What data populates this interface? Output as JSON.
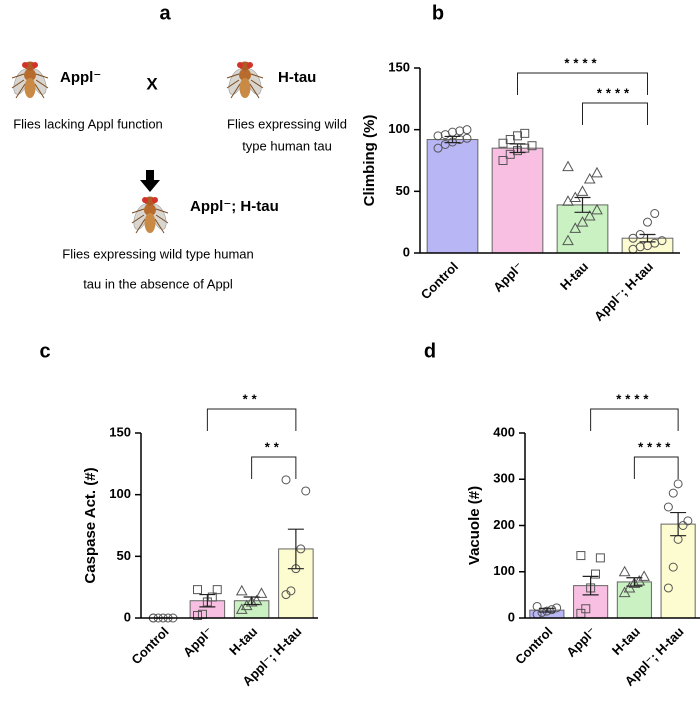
{
  "diagram": {
    "label": "a",
    "parent1": "Appl⁻",
    "cross": "X",
    "parent2": "H-tau",
    "parent1_desc": [
      "Flies lacking Appl function"
    ],
    "parent2_desc": [
      "Flies expressing wild",
      "type human tau"
    ],
    "child": "Appl⁻; H-tau",
    "child_desc": [
      "Flies expressing wild type human",
      "tau in the absence of Appl"
    ]
  },
  "chart_data": [
    {
      "type": "bar",
      "label": "b",
      "ylabel": "Climbing (%)",
      "categories": [
        "Control",
        "Appl⁻",
        "H-tau",
        "Appl⁻; H-tau"
      ],
      "colors": [
        "#b9b6f6",
        "#f8bfe2",
        "#c9f1c2",
        "#fdfbd0"
      ],
      "markers": [
        "circle",
        "square",
        "triangle",
        "circle"
      ],
      "values": [
        92,
        85,
        39,
        12
      ],
      "errors": [
        2.5,
        3.5,
        6,
        3
      ],
      "points": [
        [
          85,
          88,
          90,
          92,
          93,
          95,
          96,
          98,
          99,
          100
        ],
        [
          75,
          80,
          83,
          85,
          87,
          89,
          92,
          95,
          97
        ],
        [
          10,
          20,
          25,
          30,
          35,
          42,
          45,
          50,
          60,
          65,
          70
        ],
        [
          3,
          5,
          6,
          8,
          10,
          12,
          15,
          25,
          32
        ]
      ],
      "ylim": [
        0,
        150
      ],
      "yticks": [
        0,
        50,
        100,
        150
      ],
      "significance": [
        {
          "from": 1,
          "to": 3,
          "label": "****"
        },
        {
          "from": 2,
          "to": 3,
          "label": "****"
        }
      ]
    },
    {
      "type": "bar",
      "label": "c",
      "ylabel": "Caspase Act. (#)",
      "categories": [
        "Control",
        "Appl⁻",
        "H-tau",
        "Appl⁻; H-tau"
      ],
      "colors": [
        "#b9b6f6",
        "#f8bfe2",
        "#c9f1c2",
        "#fdfbd0"
      ],
      "markers": [
        "circle",
        "square",
        "triangle",
        "circle"
      ],
      "values": [
        0,
        14,
        14,
        56
      ],
      "errors": [
        0,
        5,
        3,
        16
      ],
      "points": [
        [
          0,
          0,
          0,
          0,
          0,
          0
        ],
        [
          2,
          3,
          13,
          17,
          23,
          23
        ],
        [
          7,
          10,
          13,
          14,
          20,
          22
        ],
        [
          19,
          22,
          40,
          56,
          103,
          112
        ]
      ],
      "ylim": [
        0,
        150
      ],
      "yticks": [
        0,
        50,
        100,
        150
      ],
      "significance": [
        {
          "from": 1,
          "to": 3,
          "label": "**"
        },
        {
          "from": 2,
          "to": 3,
          "label": "**"
        }
      ]
    },
    {
      "type": "bar",
      "label": "d",
      "ylabel": "Vacuole (#)",
      "categories": [
        "Control",
        "Appl⁻",
        "H-tau",
        "Appl⁻; H-tau"
      ],
      "colors": [
        "#b9b6f6",
        "#f8bfe2",
        "#c9f1c2",
        "#fdfbd0"
      ],
      "markers": [
        "circle",
        "square",
        "triangle",
        "circle"
      ],
      "values": [
        17,
        70,
        78,
        203
      ],
      "errors": [
        4,
        20,
        9,
        25
      ],
      "points": [
        [
          8,
          12,
          15,
          18,
          22,
          25
        ],
        [
          10,
          20,
          65,
          95,
          130,
          135
        ],
        [
          55,
          65,
          75,
          80,
          90,
          100
        ],
        [
          65,
          110,
          170,
          200,
          210,
          240,
          270,
          290
        ]
      ],
      "ylim": [
        0,
        400
      ],
      "yticks": [
        0,
        100,
        200,
        300,
        400
      ],
      "significance": [
        {
          "from": 1,
          "to": 3,
          "label": "****"
        },
        {
          "from": 2,
          "to": 3,
          "label": "****"
        }
      ]
    }
  ]
}
